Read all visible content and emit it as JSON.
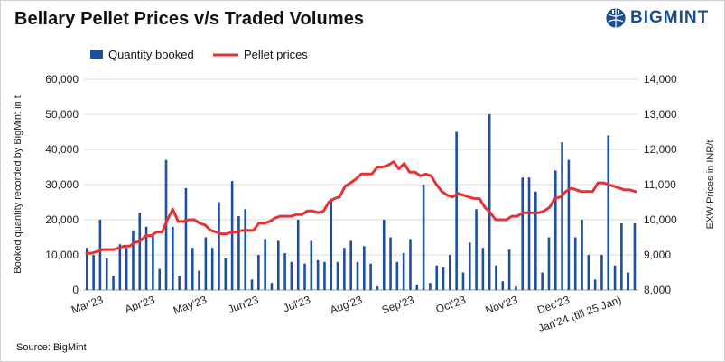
{
  "title": "Bellary Pellet Prices v/s Traded Volumes",
  "logo_text": "BIGMINT",
  "source": "Source: BigMint",
  "chart_data": {
    "type": "bar+line",
    "xlabels": [
      "Mar'23",
      "Apr'23",
      "May'23",
      "Jun'23",
      "Jul'23",
      "Aug'23",
      "Sep'23",
      "Oct'23",
      "Nov'23",
      "Dec'23",
      "Jan'24 (till 25 Jan)"
    ],
    "ylabel_left": "Booked quantity recorded by BigMint in t",
    "ylabel_right": "EXW-Prices in INR/t",
    "ylim_left": [
      0,
      60000
    ],
    "ylim_right": [
      8000,
      14000
    ],
    "yticks_left": [
      "0",
      "10,000",
      "20,000",
      "30,000",
      "40,000",
      "50,000",
      "60,000"
    ],
    "yticks_right": [
      "8,000",
      "9,000",
      "10,000",
      "11,000",
      "12,000",
      "13,000",
      "14,000"
    ],
    "grid": "horizontal",
    "legend": "top-left",
    "series": [
      {
        "name": "Quantity booked",
        "type": "bar",
        "color": "#1c4fa0",
        "values": [
          12000,
          10000,
          20000,
          9000,
          4000,
          13000,
          12000,
          17000,
          22000,
          18000,
          16000,
          6000,
          37000,
          18000,
          4000,
          29000,
          12000,
          5500,
          15000,
          12000,
          25000,
          9000,
          31000,
          21000,
          23000,
          3000,
          10000,
          14500,
          2000,
          14000,
          10500,
          8000,
          20000,
          7500,
          14000,
          8500,
          8000,
          26000,
          8000,
          12000,
          14000,
          8000,
          12500,
          7500,
          1000,
          20000,
          15000,
          8000,
          10500,
          14500,
          1500,
          30000,
          2000,
          7000,
          6500,
          10000,
          45000,
          5000,
          13500,
          23000,
          12000,
          50000,
          7000,
          2500,
          11500,
          1000,
          32000,
          32000,
          28000,
          5000,
          15000,
          34000,
          42000,
          37000,
          15000,
          20000,
          10000,
          3000,
          10000,
          44000,
          7000,
          19000,
          5000,
          19000
        ],
        "colors_note": "bars"
      },
      {
        "name": "Pellet prices",
        "type": "line",
        "color": "#e63232",
        "values": [
          9050,
          9050,
          9100,
          9150,
          9150,
          9150,
          9200,
          9250,
          9250,
          9350,
          9400,
          9550,
          9550,
          9650,
          9650,
          10000,
          10300,
          9950,
          9950,
          10000,
          10000,
          9900,
          9850,
          9700,
          9650,
          9600,
          9600,
          9650,
          9650,
          9700,
          9700,
          9700,
          9900,
          9900,
          9950,
          10050,
          10100,
          10100,
          10100,
          10150,
          10150,
          10250,
          10250,
          10200,
          10250,
          10500,
          10600,
          10650,
          10950,
          11050,
          11150,
          11300,
          11300,
          11300,
          11500,
          11500,
          11550,
          11650,
          11450,
          11600,
          11350,
          11350,
          11250,
          11300,
          11250,
          11000,
          10800,
          10700,
          10650,
          10750,
          10700,
          10650,
          10600,
          10600,
          10350,
          10200,
          10000,
          10000,
          10000,
          10100,
          10100,
          10200,
          10200,
          10200,
          10200,
          10250,
          10350,
          10600,
          10650,
          10800,
          10900,
          10850,
          10800,
          10800,
          10800,
          11050,
          11050,
          11000,
          10950,
          10900,
          10850,
          10850,
          10800
        ]
      }
    ]
  }
}
